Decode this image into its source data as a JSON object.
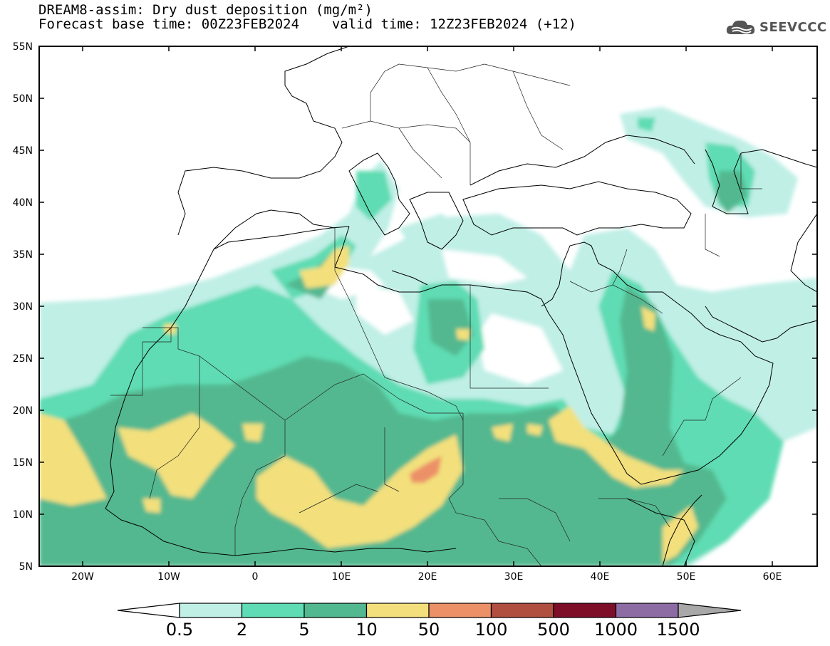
{
  "header": {
    "title": "DREAM8-assim: Dry dust deposition (mg/m²)",
    "base_time": "Forecast base time: 00Z23FEB2024",
    "valid_time": "valid time: 12Z23FEB2024 (+12)"
  },
  "logo": {
    "text": "SEEVCCC",
    "icon": "cloud-icon"
  },
  "map": {
    "lat_labels": [
      "55N",
      "50N",
      "45N",
      "40N",
      "35N",
      "30N",
      "25N",
      "20N",
      "15N",
      "10N",
      "5N"
    ],
    "lon_labels": [
      "20W",
      "10W",
      "0",
      "10E",
      "20E",
      "30E",
      "40E",
      "50E",
      "60E"
    ]
  },
  "colorbar": {
    "labels": [
      "0.5",
      "2",
      "5",
      "10",
      "50",
      "100",
      "500",
      "1000",
      "1500"
    ],
    "colors": [
      "#c0efe6",
      "#5fdcb3",
      "#52b88f",
      "#f3e07c",
      "#ec9068",
      "#b04e3f",
      "#7e0d28",
      "#8d6ca4"
    ],
    "under_color": "#ffffff",
    "over_color": "#a8a8a8"
  }
}
